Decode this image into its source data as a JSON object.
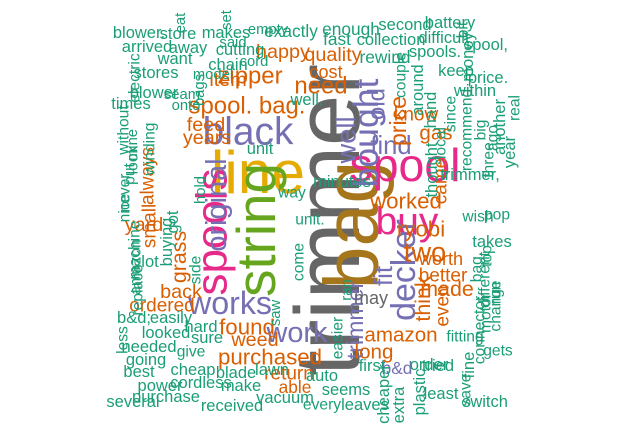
{
  "colors": {
    "green": "#1b9e77",
    "orange": "#d95f02",
    "purple": "#7570b3",
    "pink": "#e7298a",
    "lime": "#66a61e",
    "gold": "#e6ab02",
    "brown": "#a6761d",
    "gray": "#666666"
  },
  "words": [
    {
      "text": "trimmer",
      "color": "gray",
      "weight": 1.0,
      "rotated": true
    },
    {
      "text": "bag",
      "color": "brown",
      "weight": 0.82,
      "rotated": true
    },
    {
      "text": "line",
      "color": "gold",
      "weight": 0.62,
      "rotated": false
    },
    {
      "text": "string",
      "color": "lime",
      "weight": 0.55,
      "rotated": true
    },
    {
      "text": "spool",
      "color": "pink",
      "weight": 0.45,
      "rotated": false
    },
    {
      "text": "spools",
      "color": "pink",
      "weight": 0.42,
      "rotated": true
    },
    {
      "text": "buy",
      "color": "pink",
      "weight": 0.36,
      "rotated": false
    },
    {
      "text": "black",
      "color": "purple",
      "weight": 0.36,
      "rotated": false
    },
    {
      "text": "bought",
      "color": "purple",
      "weight": 0.32,
      "rotated": true
    },
    {
      "text": "decker",
      "color": "purple",
      "weight": 0.3,
      "rotated": true
    },
    {
      "text": "works",
      "color": "purple",
      "weight": 0.28,
      "rotated": false
    },
    {
      "text": "original",
      "color": "purple",
      "weight": 0.24,
      "rotated": true
    },
    {
      "text": "work",
      "color": "purple",
      "weight": 0.24,
      "rotated": false
    },
    {
      "text": "well",
      "color": "purple",
      "weight": 0.22,
      "rotated": true
    },
    {
      "text": "two",
      "color": "orange",
      "weight": 0.22,
      "rotated": false
    },
    {
      "text": "find",
      "color": "purple",
      "weight": 0.2,
      "rotated": false
    },
    {
      "text": "fit",
      "color": "purple",
      "weight": 0.2,
      "rotated": true
    },
    {
      "text": "spool. bag.",
      "color": "orange",
      "weight": 0.18,
      "rotated": false
    },
    {
      "text": "zipper",
      "color": "orange",
      "weight": 0.18,
      "rotated": false
    },
    {
      "text": "need",
      "color": "orange",
      "weight": 0.18,
      "rotated": false
    },
    {
      "text": "old",
      "color": "purple",
      "weight": 0.18,
      "rotated": true
    },
    {
      "text": "price",
      "color": "orange",
      "weight": 0.17,
      "rotated": true
    },
    {
      "text": "trimmer",
      "color": "purple",
      "weight": 0.17,
      "rotated": true
    },
    {
      "text": "worked",
      "color": "orange",
      "weight": 0.16,
      "rotated": false
    },
    {
      "text": "ryobi",
      "color": "orange",
      "weight": 0.16,
      "rotated": false
    },
    {
      "text": "purchased",
      "color": "orange",
      "weight": 0.16,
      "rotated": false
    },
    {
      "text": "found",
      "color": "orange",
      "weight": 0.16,
      "rotated": false
    },
    {
      "text": "grass",
      "color": "orange",
      "weight": 0.15,
      "rotated": true
    },
    {
      "text": "think",
      "color": "orange",
      "weight": 0.15,
      "rotated": true
    },
    {
      "text": "made",
      "color": "orange",
      "weight": 0.15,
      "rotated": false
    },
    {
      "text": "gas",
      "color": "orange",
      "weight": 0.14,
      "rotated": false
    },
    {
      "text": "amazon",
      "color": "orange",
      "weight": 0.14,
      "rotated": false
    },
    {
      "text": "long",
      "color": "orange",
      "weight": 0.14,
      "rotated": false
    },
    {
      "text": "quality",
      "color": "orange",
      "weight": 0.13,
      "rotated": false
    },
    {
      "text": "happy",
      "color": "orange",
      "weight": 0.13,
      "rotated": false
    },
    {
      "text": "item",
      "color": "orange",
      "weight": 0.13,
      "rotated": false
    },
    {
      "text": "years",
      "color": "orange",
      "weight": 0.13,
      "rotated": false
    },
    {
      "text": "feed",
      "color": "orange",
      "weight": 0.13,
      "rotated": false
    },
    {
      "text": "back",
      "color": "orange",
      "weight": 0.13,
      "rotated": false
    },
    {
      "text": "yard",
      "color": "orange",
      "weight": 0.13,
      "rotated": false
    },
    {
      "text": "weed",
      "color": "orange",
      "weight": 0.13,
      "rotated": false
    },
    {
      "text": "came",
      "color": "orange",
      "weight": 0.12,
      "rotated": true
    },
    {
      "text": "better",
      "color": "orange",
      "weight": 0.12,
      "rotated": false
    },
    {
      "text": "ordered",
      "color": "orange",
      "weight": 0.12,
      "rotated": false
    },
    {
      "text": "return",
      "color": "orange",
      "weight": 0.12,
      "rotated": false
    },
    {
      "text": "know",
      "color": "orange",
      "weight": 0.12,
      "rotated": false
    },
    {
      "text": "always",
      "color": "orange",
      "weight": 0.12,
      "rotated": true
    },
    {
      "text": "small",
      "color": "orange",
      "weight": 0.12,
      "rotated": true
    },
    {
      "text": "even",
      "color": "orange",
      "weight": 0.12,
      "rotated": true
    },
    {
      "text": "worth",
      "color": "orange",
      "weight": 0.11,
      "rotated": false
    },
    {
      "text": "may",
      "color": "gray",
      "weight": 0.11,
      "rotated": false
    },
    {
      "text": "cost",
      "color": "orange",
      "weight": 0.11,
      "rotated": false
    },
    {
      "text": "fast",
      "color": "green",
      "weight": 0.1,
      "rotated": false
    },
    {
      "text": "rewind",
      "color": "green",
      "weight": 0.1,
      "rotated": false
    },
    {
      "text": "exactly",
      "color": "green",
      "weight": 0.1,
      "rotated": false
    },
    {
      "text": "enough",
      "color": "green",
      "weight": 0.1,
      "rotated": false
    },
    {
      "text": "second",
      "color": "green",
      "weight": 0.09,
      "rotated": false
    },
    {
      "text": "battery",
      "color": "green",
      "weight": 0.09,
      "rotated": false
    },
    {
      "text": "blower.",
      "color": "green",
      "weight": 0.09,
      "rotated": false
    },
    {
      "text": "store",
      "color": "green",
      "weight": 0.09,
      "rotated": false
    },
    {
      "text": "makes",
      "color": "green",
      "weight": 0.09,
      "rotated": false
    },
    {
      "text": "collection",
      "color": "green",
      "weight": 0.09,
      "rotated": false
    },
    {
      "text": "spools.",
      "color": "green",
      "weight": 0.09,
      "rotated": false
    },
    {
      "text": "cutting",
      "color": "green",
      "weight": 0.09,
      "rotated": false
    },
    {
      "text": "difficult",
      "color": "green",
      "weight": 0.09,
      "rotated": false
    },
    {
      "text": "spool,",
      "color": "green",
      "weight": 0.09,
      "rotated": false
    },
    {
      "text": "arrived",
      "color": "green",
      "weight": 0.09,
      "rotated": false
    },
    {
      "text": "away",
      "color": "green",
      "weight": 0.09,
      "rotated": false
    },
    {
      "text": "want",
      "color": "green",
      "weight": 0.09,
      "rotated": false
    },
    {
      "text": "chain",
      "color": "green",
      "weight": 0.09,
      "rotated": false
    },
    {
      "text": "well.",
      "color": "green",
      "weight": 0.09,
      "rotated": false
    },
    {
      "text": "stores",
      "color": "green",
      "weight": 0.09,
      "rotated": false
    },
    {
      "text": "keep",
      "color": "green",
      "weight": 0.09,
      "rotated": false
    },
    {
      "text": "price.",
      "color": "green",
      "weight": 0.09,
      "rotated": false
    },
    {
      "text": "unit",
      "color": "green",
      "weight": 0.09,
      "rotated": false
    },
    {
      "text": "blower",
      "color": "green",
      "weight": 0.09,
      "rotated": false
    },
    {
      "text": "times",
      "color": "green",
      "weight": 0.09,
      "rotated": false
    },
    {
      "text": "within",
      "color": "green",
      "weight": 0.09,
      "rotated": false
    },
    {
      "text": "minutes",
      "color": "green",
      "weight": 0.09,
      "rotated": false
    },
    {
      "text": "lot",
      "color": "green",
      "weight": 0.09,
      "rotated": false
    },
    {
      "text": "buying",
      "color": "green",
      "weight": 0.09,
      "rotated": true
    },
    {
      "text": "got",
      "color": "green",
      "weight": 0.09,
      "rotated": true
    },
    {
      "text": "year",
      "color": "green",
      "weight": 0.09,
      "rotated": true
    },
    {
      "text": "machine",
      "color": "green",
      "weight": 0.08,
      "rotated": true
    },
    {
      "text": "amazon",
      "color": "green",
      "weight": 0.08,
      "rotated": true
    },
    {
      "text": "replace",
      "color": "green",
      "weight": 0.08,
      "rotated": true
    },
    {
      "text": "easily",
      "color": "green",
      "weight": 0.09,
      "rotated": false
    },
    {
      "text": "b&d;",
      "color": "green",
      "weight": 0.09,
      "rotated": false
    },
    {
      "text": "looked",
      "color": "green",
      "weight": 0.09,
      "rotated": false
    },
    {
      "text": "needed",
      "color": "green",
      "weight": 0.09,
      "rotated": false
    },
    {
      "text": "going",
      "color": "green",
      "weight": 0.09,
      "rotated": false
    },
    {
      "text": "best",
      "color": "green",
      "weight": 0.09,
      "rotated": false
    },
    {
      "text": "power",
      "color": "green",
      "weight": 0.09,
      "rotated": false
    },
    {
      "text": "cordless",
      "color": "green",
      "weight": 0.09,
      "rotated": false
    },
    {
      "text": "make",
      "color": "green",
      "weight": 0.09,
      "rotated": false
    },
    {
      "text": "purchase",
      "color": "green",
      "weight": 0.09,
      "rotated": false
    },
    {
      "text": "received",
      "color": "green",
      "weight": 0.09,
      "rotated": false
    },
    {
      "text": "several",
      "color": "green",
      "weight": 0.09,
      "rotated": false
    },
    {
      "text": "give",
      "color": "green",
      "weight": 0.08,
      "rotated": false
    },
    {
      "text": "cheap",
      "color": "green",
      "weight": 0.09,
      "rotated": false
    },
    {
      "text": "blade",
      "color": "green",
      "weight": 0.09,
      "rotated": false
    },
    {
      "text": "lawn",
      "color": "green",
      "weight": 0.09,
      "rotated": false
    },
    {
      "text": "sure",
      "color": "green",
      "weight": 0.09,
      "rotated": false
    },
    {
      "text": "hard",
      "color": "green",
      "weight": 0.09,
      "rotated": false
    },
    {
      "text": "able",
      "color": "orange",
      "weight": 0.1,
      "rotated": false
    },
    {
      "text": "seems",
      "color": "green",
      "weight": 0.09,
      "rotated": false
    },
    {
      "text": "vacuum",
      "color": "green",
      "weight": 0.09,
      "rotated": false
    },
    {
      "text": "every",
      "color": "green",
      "weight": 0.08,
      "rotated": false
    },
    {
      "text": "leaves",
      "color": "green",
      "weight": 0.09,
      "rotated": false
    },
    {
      "text": "auto",
      "color": "green",
      "weight": 0.09,
      "rotated": false
    },
    {
      "text": "first",
      "color": "green",
      "weight": 0.09,
      "rotated": false
    },
    {
      "text": "b&d",
      "color": "purple",
      "weight": 0.1,
      "rotated": false
    },
    {
      "text": "cheaper",
      "color": "green",
      "weight": 0.09,
      "rotated": true
    },
    {
      "text": "extra",
      "color": "green",
      "weight": 0.09,
      "rotated": true
    },
    {
      "text": "order",
      "color": "green",
      "weight": 0.09,
      "rotated": false
    },
    {
      "text": "plastic",
      "color": "green",
      "weight": 0.09,
      "rotated": true
    },
    {
      "text": "least",
      "color": "green",
      "weight": 0.09,
      "rotated": false
    },
    {
      "text": "tried",
      "color": "green",
      "weight": 0.09,
      "rotated": false
    },
    {
      "text": "fine",
      "color": "green",
      "weight": 0.09,
      "rotated": true
    },
    {
      "text": "save",
      "color": "green",
      "weight": 0.08,
      "rotated": true
    },
    {
      "text": "switch",
      "color": "green",
      "weight": 0.09,
      "rotated": false
    },
    {
      "text": "gets",
      "color": "green",
      "weight": 0.08,
      "rotated": false
    },
    {
      "text": "fitting",
      "color": "green",
      "weight": 0.08,
      "rotated": false
    },
    {
      "text": "connector",
      "color": "green",
      "weight": 0.08,
      "rotated": true
    },
    {
      "text": "motor",
      "color": "green",
      "weight": 0.08,
      "rotated": true
    },
    {
      "text": "change",
      "color": "green",
      "weight": 0.08,
      "rotated": true
    },
    {
      "text": "run",
      "color": "green",
      "weight": 0.08,
      "rotated": true
    },
    {
      "text": "different",
      "color": "green",
      "weight": 0.08,
      "rotated": true
    },
    {
      "text": "bag.",
      "color": "green",
      "weight": 0.08,
      "rotated": true
    },
    {
      "text": "top",
      "color": "green",
      "weight": 0.08,
      "rotated": true
    },
    {
      "text": "takes",
      "color": "green",
      "weight": 0.09,
      "rotated": false
    },
    {
      "text": "wish",
      "color": "green",
      "weight": 0.08,
      "rotated": false
    },
    {
      "text": "pop",
      "color": "green",
      "weight": 0.08,
      "rotated": false
    },
    {
      "text": "trimmer,",
      "color": "green",
      "weight": 0.09,
      "rotated": false
    },
    {
      "text": "three",
      "color": "green",
      "weight": 0.08,
      "rotated": true
    },
    {
      "text": "ago",
      "color": "green",
      "weight": 0.08,
      "rotated": true
    },
    {
      "text": "another",
      "color": "green",
      "weight": 0.09,
      "rotated": true
    },
    {
      "text": "big",
      "color": "green",
      "weight": 0.08,
      "rotated": true
    },
    {
      "text": "recommend",
      "color": "green",
      "weight": 0.08,
      "rotated": true
    },
    {
      "text": "real",
      "color": "green",
      "weight": 0.08,
      "rotated": true
    },
    {
      "text": "since",
      "color": "green",
      "weight": 0.08,
      "rotated": true
    },
    {
      "text": "around",
      "color": "green",
      "weight": 0.09,
      "rotated": true
    },
    {
      "text": "hand",
      "color": "green",
      "weight": 0.09,
      "rotated": true
    },
    {
      "text": "couple",
      "color": "green",
      "weight": 0.08,
      "rotated": true
    },
    {
      "text": "thought",
      "color": "green",
      "weight": 0.09,
      "rotated": true
    },
    {
      "text": "local",
      "color": "green",
      "weight": 0.08,
      "rotated": true
    },
    {
      "text": "money",
      "color": "green",
      "weight": 0.09,
      "rotated": true
    },
    {
      "text": "bit",
      "color": "green",
      "weight": 0.08,
      "rotated": true
    },
    {
      "text": "eat",
      "color": "green",
      "weight": 0.07,
      "rotated": true
    },
    {
      "text": "set",
      "color": "green",
      "weight": 0.07,
      "rotated": true
    },
    {
      "text": "empty",
      "color": "green",
      "weight": 0.07,
      "rotated": false
    },
    {
      "text": "said",
      "color": "green",
      "weight": 0.07,
      "rotated": false
    },
    {
      "text": "cord",
      "color": "green",
      "weight": 0.07,
      "rotated": false
    },
    {
      "text": "model",
      "color": "green",
      "weight": 0.07,
      "rotated": false
    },
    {
      "text": "bags",
      "color": "green",
      "weight": 0.07,
      "rotated": true
    },
    {
      "text": "seam",
      "color": "green",
      "weight": 0.07,
      "rotated": false
    },
    {
      "text": "onto",
      "color": "green",
      "weight": 0.07,
      "rotated": false
    },
    {
      "text": "mine",
      "color": "green",
      "weight": 0.07,
      "rotated": true
    },
    {
      "text": "winding",
      "color": "green",
      "weight": 0.08,
      "rotated": true
    },
    {
      "text": "look",
      "color": "green",
      "weight": 0.08,
      "rotated": true
    },
    {
      "text": "put",
      "color": "green",
      "weight": 0.08,
      "rotated": true
    },
    {
      "text": "without",
      "color": "green",
      "weight": 0.08,
      "rotated": true
    },
    {
      "text": "electric",
      "color": "green",
      "weight": 0.08,
      "rotated": true
    },
    {
      "text": "never",
      "color": "green",
      "weight": 0.08,
      "rotated": true
    },
    {
      "text": "nice",
      "color": "green",
      "weight": 0.08,
      "rotated": true
    },
    {
      "text": "side",
      "color": "green",
      "weight": 0.08,
      "rotated": true
    },
    {
      "text": "hold",
      "color": "green",
      "weight": 0.07,
      "rotated": true
    },
    {
      "text": "come",
      "color": "green",
      "weight": 0.08,
      "rotated": true
    },
    {
      "text": "unit.",
      "color": "green",
      "weight": 0.08,
      "rotated": false
    },
    {
      "text": "way",
      "color": "green",
      "weight": 0.08,
      "rotated": false
    },
    {
      "text": "saw",
      "color": "green",
      "weight": 0.07,
      "rotated": true
    },
    {
      "text": "ran",
      "color": "green",
      "weight": 0.07,
      "rotated": true
    },
    {
      "text": "easier",
      "color": "green",
      "weight": 0.08,
      "rotated": true
    },
    {
      "text": "less",
      "color": "green",
      "weight": 0.08,
      "rotated": true
    },
    {
      "text": "lock",
      "color": "green",
      "weight": 0.07,
      "rotated": true
    },
    {
      "text": "try",
      "color": "green",
      "weight": 0.07,
      "rotated": true
    },
    {
      "text": "end",
      "color": "green",
      "weight": 0.07,
      "rotated": false
    },
    {
      "text": "leaf",
      "color": "green",
      "weight": 0.08,
      "rotated": true
    },
    {
      "text": "wound",
      "color": "green",
      "weight": 0.08,
      "rotated": true
    }
  ]
}
